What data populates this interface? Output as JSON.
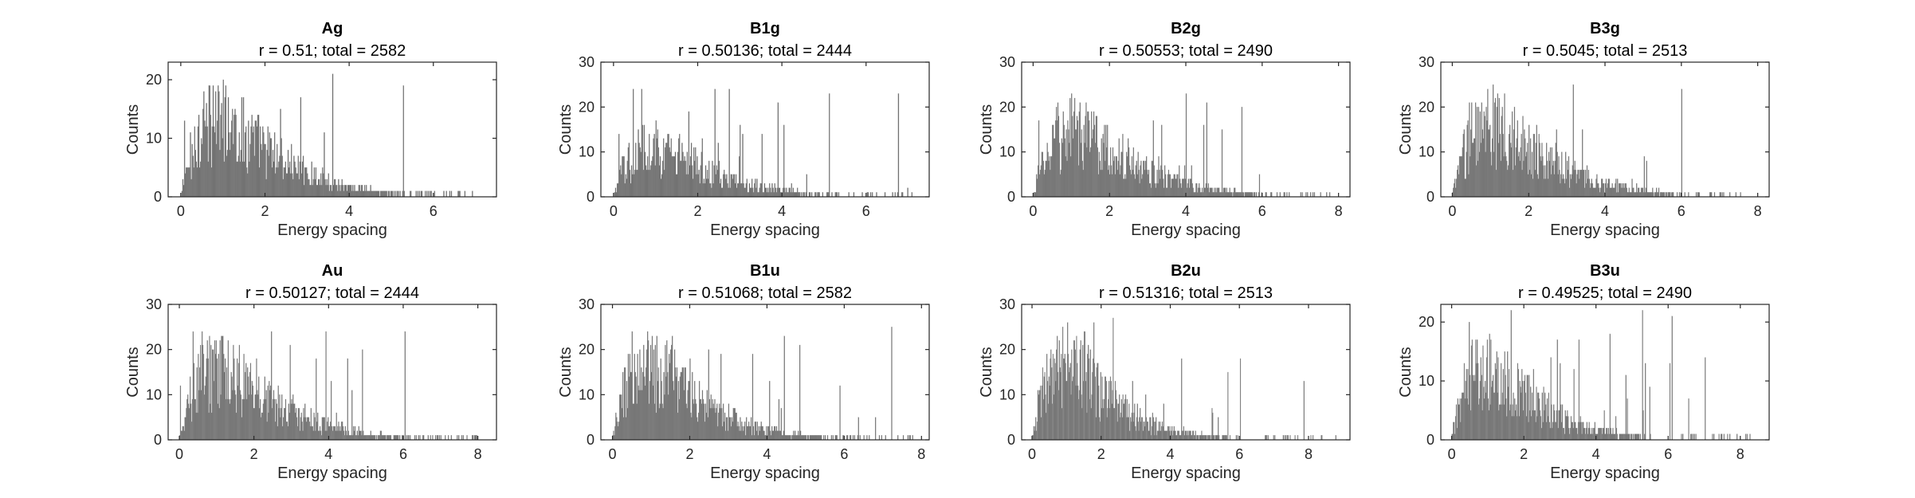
{
  "chart_data": [
    {
      "type": "bar",
      "title": "Ag",
      "subtitle": "r = 0.51; total = 2582",
      "xlabel": "Energy spacing",
      "ylabel": "Counts",
      "xlim": [
        -0.3,
        7.5
      ],
      "ylim": [
        0,
        23
      ],
      "xticks": [
        0,
        2,
        4,
        6
      ],
      "yticks": [
        0,
        10,
        20
      ],
      "bins": {
        "start": 0,
        "width": 0.02,
        "peak_x": 0.9,
        "peak_y": 14,
        "tail": 1.0,
        "end": 7.1,
        "spike_max": 22
      }
    },
    {
      "type": "bar",
      "title": "B1g",
      "subtitle": "r = 0.50136; total = 2444",
      "xlabel": "Energy spacing",
      "ylabel": "Counts",
      "xlim": [
        -0.3,
        7.5
      ],
      "ylim": [
        0,
        30
      ],
      "xticks": [
        0,
        2,
        4,
        6
      ],
      "yticks": [
        0,
        10,
        20,
        30
      ],
      "bins": {
        "start": 0,
        "width": 0.02,
        "peak_x": 0.9,
        "peak_y": 12,
        "tail": 1.1,
        "end": 7.1,
        "spike_max": 25
      }
    },
    {
      "type": "bar",
      "title": "B2g",
      "subtitle": "r = 0.50553; total = 2490",
      "xlabel": "Energy spacing",
      "ylabel": "Counts",
      "xlim": [
        -0.3,
        8.3
      ],
      "ylim": [
        0,
        30
      ],
      "xticks": [
        0,
        2,
        4,
        6,
        8
      ],
      "yticks": [
        0,
        10,
        20,
        30
      ],
      "bins": {
        "start": 0,
        "width": 0.02,
        "peak_x": 1.0,
        "peak_y": 16,
        "tail": 1.0,
        "end": 7.9,
        "spike_max": 25
      }
    },
    {
      "type": "bar",
      "title": "B3g",
      "subtitle": "r = 0.5045; total = 2513",
      "xlabel": "Energy spacing",
      "ylabel": "Counts",
      "xlim": [
        -0.3,
        8.3
      ],
      "ylim": [
        0,
        30
      ],
      "xticks": [
        0,
        2,
        4,
        6,
        8
      ],
      "yticks": [
        0,
        10,
        20,
        30
      ],
      "bins": {
        "start": 0,
        "width": 0.02,
        "peak_x": 1.0,
        "peak_y": 17,
        "tail": 1.0,
        "end": 7.6,
        "spike_max": 26
      }
    },
    {
      "type": "bar",
      "title": "Au",
      "subtitle": "r = 0.50127; total = 2444",
      "xlabel": "Energy spacing",
      "ylabel": "Counts",
      "xlim": [
        -0.3,
        8.5
      ],
      "ylim": [
        0,
        30
      ],
      "xticks": [
        0,
        2,
        4,
        6,
        8
      ],
      "yticks": [
        0,
        10,
        20,
        30
      ],
      "bins": {
        "start": 0,
        "width": 0.02,
        "peak_x": 1.0,
        "peak_y": 17,
        "tail": 1.0,
        "end": 8.0,
        "spike_max": 25
      }
    },
    {
      "type": "bar",
      "title": "B1u",
      "subtitle": "r = 0.51068; total = 2582",
      "xlabel": "Energy spacing",
      "ylabel": "Counts",
      "xlim": [
        -0.3,
        8.2
      ],
      "ylim": [
        0,
        30
      ],
      "xticks": [
        0,
        2,
        4,
        6,
        8
      ],
      "yticks": [
        0,
        10,
        20,
        30
      ],
      "bins": {
        "start": 0,
        "width": 0.02,
        "peak_x": 0.9,
        "peak_y": 17,
        "tail": 1.0,
        "end": 7.9,
        "spike_max": 26
      }
    },
    {
      "type": "bar",
      "title": "B2u",
      "subtitle": "r = 0.51316; total = 2513",
      "xlabel": "Energy spacing",
      "ylabel": "Counts",
      "xlim": [
        -0.3,
        9.2
      ],
      "ylim": [
        0,
        30
      ],
      "xticks": [
        0,
        2,
        4,
        6,
        8
      ],
      "yticks": [
        0,
        10,
        20,
        30
      ],
      "bins": {
        "start": 0,
        "width": 0.02,
        "peak_x": 0.9,
        "peak_y": 18,
        "tail": 1.0,
        "end": 8.8,
        "spike_max": 27
      }
    },
    {
      "type": "bar",
      "title": "B3u",
      "subtitle": "r = 0.49525; total = 2490",
      "xlabel": "Energy spacing",
      "ylabel": "Counts",
      "xlim": [
        -0.3,
        8.8
      ],
      "ylim": [
        0,
        23
      ],
      "xticks": [
        0,
        2,
        4,
        6,
        8
      ],
      "yticks": [
        0,
        10,
        20
      ],
      "bins": {
        "start": 0,
        "width": 0.02,
        "peak_x": 0.9,
        "peak_y": 13,
        "tail": 1.0,
        "end": 8.4,
        "spike_max": 22
      }
    }
  ],
  "style": {
    "bar_color": "#606060",
    "bar_edge": "#9a9a9a",
    "axis_color": "#262626",
    "background": "#ffffff"
  }
}
